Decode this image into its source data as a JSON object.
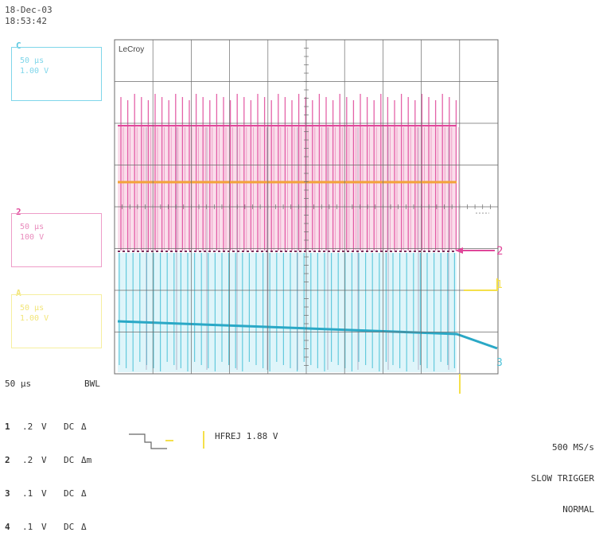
{
  "timestamp": {
    "date": "18-Dec-03",
    "time": "18:53:42"
  },
  "brand": "LeCroy",
  "traces": [
    {
      "id": "C",
      "num_label": "C",
      "timebase": "50 μs",
      "scale": "1.00 V",
      "color": "#5ac8e0"
    },
    {
      "id": "2",
      "num_label": "2",
      "timebase": "50 μs",
      "scale": "100 V",
      "color": "#e0479a"
    },
    {
      "id": "A",
      "num_label": "A",
      "timebase": "50 μs",
      "scale": "1.00 V",
      "color": "#f2e57a"
    }
  ],
  "bottom": {
    "timebase": "50 μs",
    "bwl": "BWL",
    "channels": [
      {
        "num": "1",
        "scale": ".2",
        "unit": "V",
        "coupling": "DC",
        "sym": "Δ"
      },
      {
        "num": "2",
        "scale": ".2",
        "unit": "V",
        "coupling": "DC",
        "sym": "Δm"
      },
      {
        "num": "3",
        "scale": ".1",
        "unit": "V",
        "coupling": "DC",
        "sym": "Δ"
      },
      {
        "num": "4",
        "scale": ".1",
        "unit": "V",
        "coupling": "DC",
        "sym": "Δ"
      }
    ],
    "trigger_text": "HFREJ 1.88 V",
    "sample_rate": "500 MS/s",
    "trigger_mode": "SLOW TRIGGER",
    "trigger_status": "NORMAL"
  },
  "markers": {
    "ch2": "2",
    "ch1": "1",
    "ch3": "3"
  },
  "colors": {
    "grid": "#6b6b6b",
    "magenta": "#e0479a",
    "cyan": "#4fc3d9",
    "yellow": "#f5e04a",
    "orange": "#f2a33a"
  }
}
